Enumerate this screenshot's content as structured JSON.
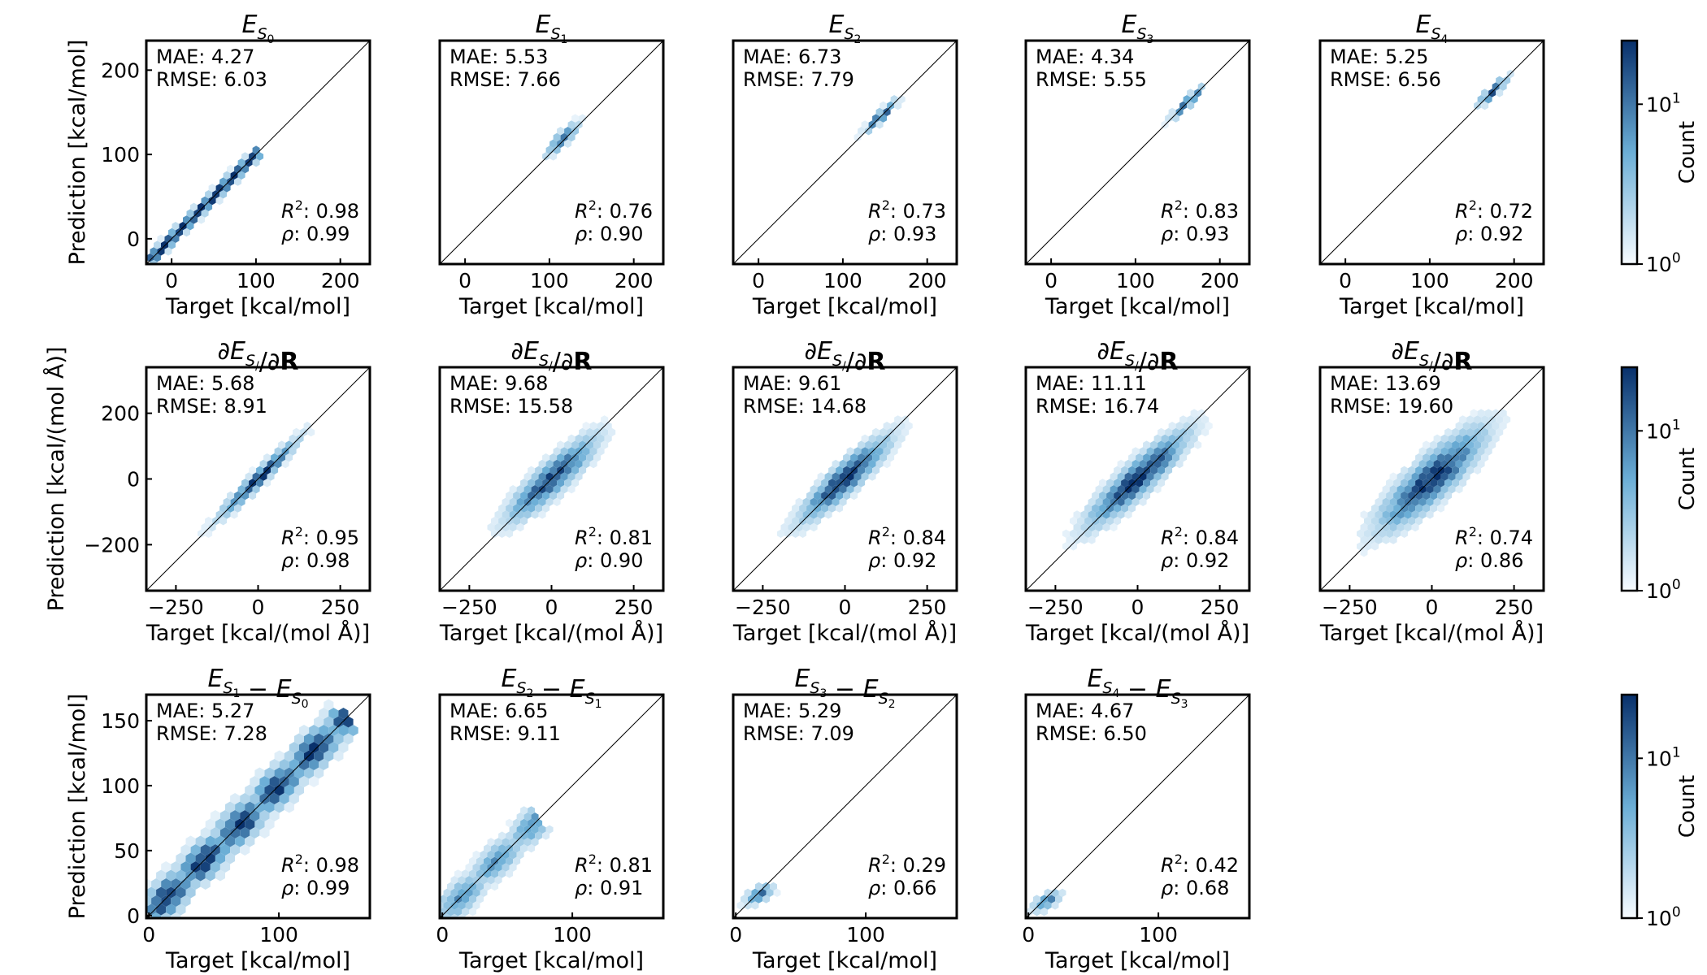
{
  "colors": {
    "low": "#f7fbff",
    "mid": "#6baed6",
    "high": "#08306b",
    "axis": "#000000"
  },
  "colorbars": [
    {
      "label": "Count",
      "ticks": [
        {
          "base": "10",
          "exp": "1",
          "value": 10
        },
        {
          "base": "10",
          "exp": "0",
          "value": 1
        }
      ],
      "range": [
        1,
        25
      ],
      "scale": "log"
    },
    {
      "label": "Count",
      "ticks": [
        {
          "base": "10",
          "exp": "1",
          "value": 10
        },
        {
          "base": "10",
          "exp": "0",
          "value": 1
        }
      ],
      "range": [
        1,
        25
      ],
      "scale": "log"
    },
    {
      "label": "Count",
      "ticks": [
        {
          "base": "10",
          "exp": "1",
          "value": 10
        },
        {
          "base": "10",
          "exp": "0",
          "value": 1
        }
      ],
      "range": [
        1,
        25
      ],
      "scale": "log"
    }
  ],
  "chart_data": [
    {
      "type": "hexbin",
      "row": 0,
      "col": 0,
      "title": "E_S0",
      "xlabel": "Target [kcal/mol]",
      "ylabel": "Prediction [kcal/mol]",
      "xlim": [
        -30,
        235
      ],
      "ylim": [
        -30,
        235
      ],
      "xticks": [
        0,
        100,
        200
      ],
      "yticks": [
        0,
        100,
        200
      ],
      "stats": {
        "mae": "MAE: 4.27",
        "rmse": "RMSE: 6.03",
        "r2": "0.98",
        "rho": "0.99"
      },
      "density": {
        "shape": "line",
        "x0": -25,
        "x1": 100,
        "spread": 4,
        "peak": 1.0
      }
    },
    {
      "type": "hexbin",
      "row": 0,
      "col": 1,
      "title": "E_S1",
      "xlabel": "Target [kcal/mol]",
      "ylabel": "",
      "xlim": [
        -30,
        235
      ],
      "ylim": [
        -30,
        235
      ],
      "xticks": [
        0,
        100,
        200
      ],
      "yticks": [],
      "stats": {
        "mae": "MAE: 5.53",
        "rmse": "RMSE: 7.66",
        "r2": "0.76",
        "rho": "0.90"
      },
      "density": {
        "shape": "cloud",
        "cx": 115,
        "cy": 118,
        "sx": 12,
        "sy": 12,
        "rho": 0.85,
        "peak": 0.8
      }
    },
    {
      "type": "hexbin",
      "row": 0,
      "col": 2,
      "title": "E_S2",
      "xlabel": "Target [kcal/mol]",
      "ylabel": "",
      "xlim": [
        -30,
        235
      ],
      "ylim": [
        -30,
        235
      ],
      "xticks": [
        0,
        100,
        200
      ],
      "yticks": [],
      "stats": {
        "mae": "MAE: 6.73",
        "rmse": "RMSE: 7.79",
        "r2": "0.73",
        "rho": "0.93"
      },
      "density": {
        "shape": "cloud",
        "cx": 145,
        "cy": 145,
        "sx": 12,
        "sy": 12,
        "rho": 0.92,
        "peak": 0.9
      }
    },
    {
      "type": "hexbin",
      "row": 0,
      "col": 3,
      "title": "E_S3",
      "xlabel": "Target [kcal/mol]",
      "ylabel": "",
      "xlim": [
        -30,
        235
      ],
      "ylim": [
        -30,
        235
      ],
      "xticks": [
        0,
        100,
        200
      ],
      "yticks": [],
      "stats": {
        "mae": "MAE: 4.34",
        "rmse": "RMSE: 5.55",
        "r2": "0.83",
        "rho": "0.93"
      },
      "density": {
        "shape": "cloud",
        "cx": 162,
        "cy": 162,
        "sx": 12,
        "sy": 12,
        "rho": 0.93,
        "peak": 0.95
      }
    },
    {
      "type": "hexbin",
      "row": 0,
      "col": 4,
      "title": "E_S4",
      "xlabel": "Target [kcal/mol]",
      "ylabel": "",
      "xlim": [
        -30,
        235
      ],
      "ylim": [
        -30,
        235
      ],
      "xticks": [
        0,
        100,
        200
      ],
      "yticks": [],
      "stats": {
        "mae": "MAE: 5.25",
        "rmse": "RMSE: 6.56",
        "r2": "0.72",
        "rho": "0.92"
      },
      "density": {
        "shape": "cloud",
        "cx": 175,
        "cy": 175,
        "sx": 11,
        "sy": 11,
        "rho": 0.9,
        "peak": 0.9
      }
    },
    {
      "type": "hexbin",
      "row": 1,
      "col": 0,
      "title": "dE_S0/dR",
      "xlabel": "Target [kcal/(mol Å)]",
      "ylabel": "Prediction [kcal/(mol Å)]",
      "xlim": [
        -340,
        340
      ],
      "ylim": [
        -340,
        340
      ],
      "xticks": [
        -250,
        0,
        250
      ],
      "yticks": [
        -200,
        0,
        200
      ],
      "stats": {
        "mae": "MAE: 5.68",
        "rmse": "RMSE: 8.91",
        "r2": "0.95",
        "rho": "0.98"
      },
      "density": {
        "shape": "cloud",
        "cx": 0,
        "cy": 0,
        "sx": 75,
        "sy": 75,
        "rho": 0.97,
        "peak": 1.0
      }
    },
    {
      "type": "hexbin",
      "row": 1,
      "col": 1,
      "title": "dE_S1/dR",
      "xlabel": "Target [kcal/(mol Å)]",
      "ylabel": "",
      "xlim": [
        -340,
        340
      ],
      "ylim": [
        -340,
        340
      ],
      "xticks": [
        -250,
        0,
        250
      ],
      "yticks": [],
      "stats": {
        "mae": "MAE: 9.68",
        "rmse": "RMSE: 15.58",
        "r2": "0.81",
        "rho": "0.90"
      },
      "density": {
        "shape": "cloud",
        "cx": 0,
        "cy": 0,
        "sx": 85,
        "sy": 80,
        "rho": 0.88,
        "peak": 0.9
      }
    },
    {
      "type": "hexbin",
      "row": 1,
      "col": 2,
      "title": "dE_S2/dR",
      "xlabel": "Target [kcal/(mol Å)]",
      "ylabel": "",
      "xlim": [
        -340,
        340
      ],
      "ylim": [
        -340,
        340
      ],
      "xticks": [
        -250,
        0,
        250
      ],
      "yticks": [],
      "stats": {
        "mae": "MAE: 9.61",
        "rmse": "RMSE: 14.68",
        "r2": "0.84",
        "rho": "0.92"
      },
      "density": {
        "shape": "cloud",
        "cx": 0,
        "cy": 0,
        "sx": 85,
        "sy": 80,
        "rho": 0.9,
        "peak": 1.0
      }
    },
    {
      "type": "hexbin",
      "row": 1,
      "col": 3,
      "title": "dE_S3/dR",
      "xlabel": "Target [kcal/(mol Å)]",
      "ylabel": "",
      "xlim": [
        -340,
        340
      ],
      "ylim": [
        -340,
        340
      ],
      "xticks": [
        -250,
        0,
        250
      ],
      "yticks": [],
      "stats": {
        "mae": "MAE: 11.11",
        "rmse": "RMSE: 16.74",
        "r2": "0.84",
        "rho": "0.92"
      },
      "density": {
        "shape": "cloud",
        "cx": 0,
        "cy": 0,
        "sx": 95,
        "sy": 90,
        "rho": 0.9,
        "peak": 1.0
      }
    },
    {
      "type": "hexbin",
      "row": 1,
      "col": 4,
      "title": "dE_S4/dR",
      "xlabel": "Target [kcal/(mol Å)]",
      "ylabel": "",
      "xlim": [
        -340,
        340
      ],
      "ylim": [
        -340,
        340
      ],
      "xticks": [
        -250,
        0,
        250
      ],
      "yticks": [],
      "stats": {
        "mae": "MAE: 13.69",
        "rmse": "RMSE: 19.60",
        "r2": "0.74",
        "rho": "0.86"
      },
      "density": {
        "shape": "cloud",
        "cx": 0,
        "cy": 0,
        "sx": 100,
        "sy": 95,
        "rho": 0.85,
        "peak": 1.0
      }
    },
    {
      "type": "hexbin",
      "row": 2,
      "col": 0,
      "title": "E_S1 - E_S0",
      "xlabel": "Target [kcal/mol]",
      "ylabel": "Prediction [kcal/mol]",
      "xlim": [
        -2,
        170
      ],
      "ylim": [
        -2,
        170
      ],
      "xticks": [
        0,
        100
      ],
      "yticks": [
        0,
        50,
        100,
        150
      ],
      "stats": {
        "mae": "MAE: 5.27",
        "rmse": "RMSE: 7.28",
        "r2": "0.98",
        "rho": "0.99"
      },
      "density": {
        "shape": "band",
        "x0": 2,
        "x1": 150,
        "spread": 8,
        "peak": 1.0
      }
    },
    {
      "type": "hexbin",
      "row": 2,
      "col": 1,
      "title": "E_S2 - E_S1",
      "xlabel": "Target [kcal/mol]",
      "ylabel": "",
      "xlim": [
        -2,
        170
      ],
      "ylim": [
        -2,
        170
      ],
      "xticks": [
        0,
        100
      ],
      "yticks": [],
      "stats": {
        "mae": "MAE: 6.65",
        "rmse": "RMSE: 9.11",
        "r2": "0.81",
        "rho": "0.91"
      },
      "density": {
        "shape": "band",
        "x0": 0,
        "x1": 72,
        "spread": 7,
        "peak": 0.6
      }
    },
    {
      "type": "hexbin",
      "row": 2,
      "col": 2,
      "title": "E_S3 - E_S2",
      "xlabel": "Target [kcal/mol]",
      "ylabel": "",
      "xlim": [
        -2,
        170
      ],
      "ylim": [
        -2,
        170
      ],
      "xticks": [
        0,
        100
      ],
      "yticks": [],
      "stats": {
        "mae": "MAE: 5.29",
        "rmse": "RMSE: 7.09",
        "r2": "0.29",
        "rho": "0.66"
      },
      "density": {
        "shape": "cloud",
        "cx": 18,
        "cy": 16,
        "sx": 7,
        "sy": 5,
        "rho": 0.6,
        "peak": 0.8
      }
    },
    {
      "type": "hexbin",
      "row": 2,
      "col": 3,
      "title": "E_S4 - E_S3",
      "xlabel": "Target [kcal/mol]",
      "ylabel": "",
      "xlim": [
        -2,
        170
      ],
      "ylim": [
        -2,
        170
      ],
      "xticks": [
        0,
        100
      ],
      "yticks": [],
      "stats": {
        "mae": "MAE: 4.67",
        "rmse": "RMSE: 6.50",
        "r2": "0.42",
        "rho": "0.68"
      },
      "density": {
        "shape": "cloud",
        "cx": 14,
        "cy": 11,
        "sx": 7,
        "sy": 5,
        "rho": 0.6,
        "peak": 0.7
      }
    }
  ]
}
